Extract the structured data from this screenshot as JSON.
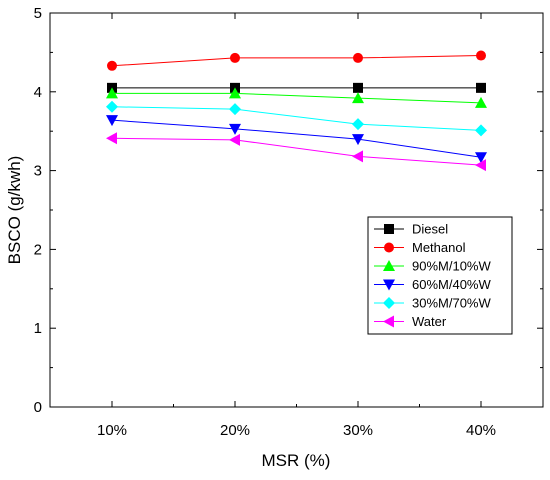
{
  "chart_data": {
    "type": "line",
    "xlabel": "MSR (%)",
    "ylabel": "BSCO (g/kwh)",
    "categories": [
      "10%",
      "20%",
      "30%",
      "40%"
    ],
    "ylim": [
      0,
      5
    ],
    "yticks": [
      0,
      1,
      2,
      3,
      4,
      5
    ],
    "grid": false,
    "legend_position": "bottom-right",
    "series": [
      {
        "name": "Diesel",
        "color": "#000000",
        "marker": "square",
        "values": [
          4.05,
          4.05,
          4.05,
          4.05
        ]
      },
      {
        "name": "Methanol",
        "color": "#ff0000",
        "marker": "circle",
        "values": [
          4.33,
          4.43,
          4.43,
          4.46
        ]
      },
      {
        "name": "90%M/10%W",
        "color": "#00ff00",
        "marker": "triangle-up",
        "values": [
          3.98,
          3.98,
          3.92,
          3.86
        ]
      },
      {
        "name": "60%M/40%W",
        "color": "#0000ff",
        "marker": "triangle-down",
        "values": [
          3.64,
          3.53,
          3.4,
          3.17
        ]
      },
      {
        "name": "30%M/70%W",
        "color": "#00ffff",
        "marker": "diamond",
        "values": [
          3.81,
          3.78,
          3.59,
          3.51
        ]
      },
      {
        "name": "Water",
        "color": "#ff00ff",
        "marker": "triangle-left",
        "values": [
          3.41,
          3.39,
          3.18,
          3.07
        ]
      }
    ]
  }
}
